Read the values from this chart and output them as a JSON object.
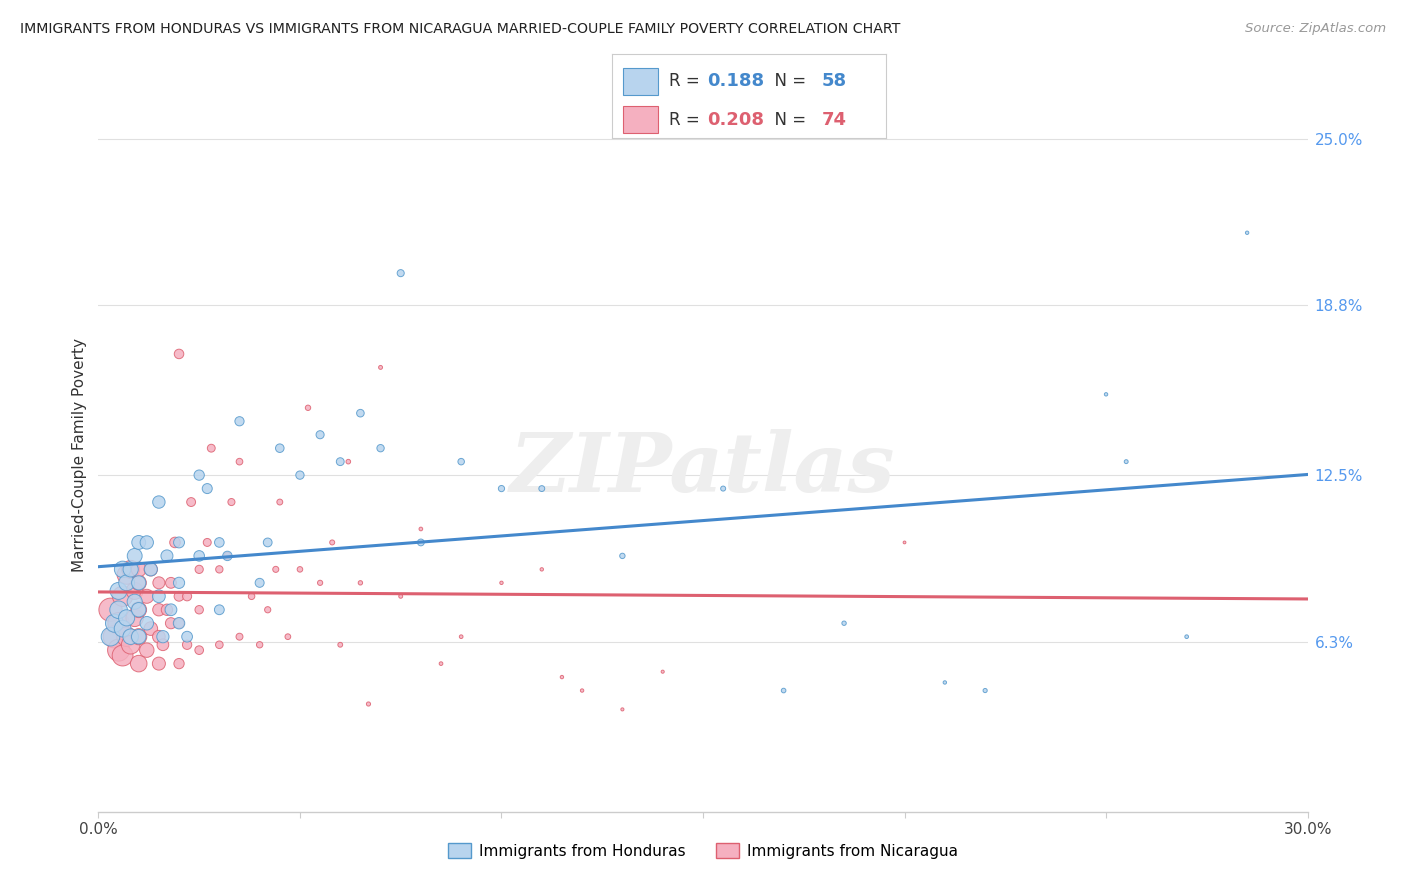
{
  "title": "IMMIGRANTS FROM HONDURAS VS IMMIGRANTS FROM NICARAGUA MARRIED-COUPLE FAMILY POVERTY CORRELATION CHART",
  "source": "Source: ZipAtlas.com",
  "ylabel": "Married-Couple Family Poverty",
  "xlim": [
    0.0,
    0.3
  ],
  "ylim": [
    0.0,
    0.265
  ],
  "yticks_right": [
    0.063,
    0.125,
    0.188,
    0.25
  ],
  "ytick_labels_right": [
    "6.3%",
    "12.5%",
    "18.8%",
    "25.0%"
  ],
  "color_honduras_face": "#b8d4ee",
  "color_honduras_edge": "#5599cc",
  "color_nicaragua_face": "#f5b0c0",
  "color_nicaragua_edge": "#dd6070",
  "color_line_honduras": "#4488cc",
  "color_line_nicaragua": "#dd6070",
  "legend_r1_label": "R = ",
  "legend_r1_val": "0.188",
  "legend_n1_label": "N = ",
  "legend_n1_val": "58",
  "legend_r2_label": "R = ",
  "legend_r2_val": "0.208",
  "legend_n2_label": "N = ",
  "legend_n2_val": "74",
  "color_legend_val1": "#4488cc",
  "color_legend_val2": "#dd6070",
  "watermark": "ZIPatlas",
  "honduras_x": [
    0.003,
    0.004,
    0.005,
    0.005,
    0.006,
    0.006,
    0.007,
    0.007,
    0.008,
    0.008,
    0.009,
    0.009,
    0.01,
    0.01,
    0.01,
    0.01,
    0.012,
    0.012,
    0.013,
    0.015,
    0.015,
    0.016,
    0.017,
    0.018,
    0.02,
    0.02,
    0.02,
    0.022,
    0.025,
    0.025,
    0.027,
    0.03,
    0.03,
    0.032,
    0.035,
    0.04,
    0.042,
    0.045,
    0.05,
    0.055,
    0.06,
    0.065,
    0.07,
    0.075,
    0.08,
    0.09,
    0.1,
    0.11,
    0.13,
    0.155,
    0.17,
    0.185,
    0.22,
    0.255,
    0.27,
    0.285,
    0.25,
    0.21
  ],
  "honduras_y": [
    0.065,
    0.07,
    0.075,
    0.082,
    0.068,
    0.09,
    0.072,
    0.085,
    0.065,
    0.09,
    0.078,
    0.095,
    0.065,
    0.075,
    0.085,
    0.1,
    0.07,
    0.1,
    0.09,
    0.08,
    0.115,
    0.065,
    0.095,
    0.075,
    0.07,
    0.085,
    0.1,
    0.065,
    0.095,
    0.125,
    0.12,
    0.075,
    0.1,
    0.095,
    0.145,
    0.085,
    0.1,
    0.135,
    0.125,
    0.14,
    0.13,
    0.148,
    0.135,
    0.2,
    0.1,
    0.13,
    0.12,
    0.12,
    0.095,
    0.12,
    0.045,
    0.07,
    0.045,
    0.13,
    0.065,
    0.215,
    0.155,
    0.048
  ],
  "honduras_sizes": [
    180,
    170,
    160,
    150,
    145,
    140,
    135,
    130,
    125,
    120,
    118,
    115,
    110,
    108,
    105,
    100,
    95,
    92,
    88,
    85,
    80,
    78,
    75,
    72,
    68,
    65,
    62,
    60,
    58,
    55,
    52,
    50,
    48,
    46,
    44,
    42,
    40,
    38,
    36,
    34,
    32,
    30,
    28,
    26,
    24,
    22,
    20,
    18,
    15,
    13,
    11,
    10,
    9,
    8,
    7,
    6,
    6,
    6
  ],
  "nicaragua_x": [
    0.003,
    0.004,
    0.005,
    0.005,
    0.006,
    0.006,
    0.007,
    0.007,
    0.008,
    0.008,
    0.009,
    0.009,
    0.01,
    0.01,
    0.01,
    0.01,
    0.01,
    0.012,
    0.012,
    0.013,
    0.013,
    0.015,
    0.015,
    0.015,
    0.015,
    0.016,
    0.017,
    0.018,
    0.018,
    0.019,
    0.02,
    0.02,
    0.02,
    0.02,
    0.022,
    0.022,
    0.023,
    0.025,
    0.025,
    0.025,
    0.027,
    0.028,
    0.03,
    0.03,
    0.032,
    0.033,
    0.035,
    0.035,
    0.038,
    0.04,
    0.042,
    0.044,
    0.045,
    0.047,
    0.05,
    0.052,
    0.055,
    0.058,
    0.06,
    0.062,
    0.065,
    0.067,
    0.07,
    0.075,
    0.08,
    0.085,
    0.09,
    0.1,
    0.11,
    0.115,
    0.12,
    0.13,
    0.14,
    0.2
  ],
  "nicaragua_y": [
    0.075,
    0.065,
    0.06,
    0.07,
    0.058,
    0.08,
    0.065,
    0.088,
    0.062,
    0.09,
    0.072,
    0.082,
    0.055,
    0.065,
    0.075,
    0.085,
    0.09,
    0.06,
    0.08,
    0.068,
    0.09,
    0.055,
    0.065,
    0.075,
    0.085,
    0.062,
    0.075,
    0.07,
    0.085,
    0.1,
    0.055,
    0.07,
    0.08,
    0.17,
    0.062,
    0.08,
    0.115,
    0.06,
    0.075,
    0.09,
    0.1,
    0.135,
    0.062,
    0.09,
    0.095,
    0.115,
    0.065,
    0.13,
    0.08,
    0.062,
    0.075,
    0.09,
    0.115,
    0.065,
    0.09,
    0.15,
    0.085,
    0.1,
    0.062,
    0.13,
    0.085,
    0.04,
    0.165,
    0.08,
    0.105,
    0.055,
    0.065,
    0.085,
    0.09,
    0.05,
    0.045,
    0.038,
    0.052,
    0.1
  ],
  "nicaragua_sizes": [
    280,
    265,
    250,
    238,
    225,
    212,
    200,
    188,
    178,
    168,
    158,
    150,
    142,
    135,
    128,
    120,
    115,
    108,
    102,
    96,
    92,
    88,
    83,
    79,
    75,
    71,
    67,
    64,
    61,
    58,
    55,
    52,
    50,
    47,
    45,
    43,
    41,
    39,
    37,
    35,
    33,
    32,
    30,
    28,
    27,
    26,
    25,
    23,
    22,
    21,
    20,
    19,
    18,
    17,
    16,
    15,
    14,
    13,
    12,
    11,
    10,
    9,
    8,
    8,
    7,
    7,
    7,
    6,
    6,
    6,
    6,
    5,
    5,
    4
  ]
}
